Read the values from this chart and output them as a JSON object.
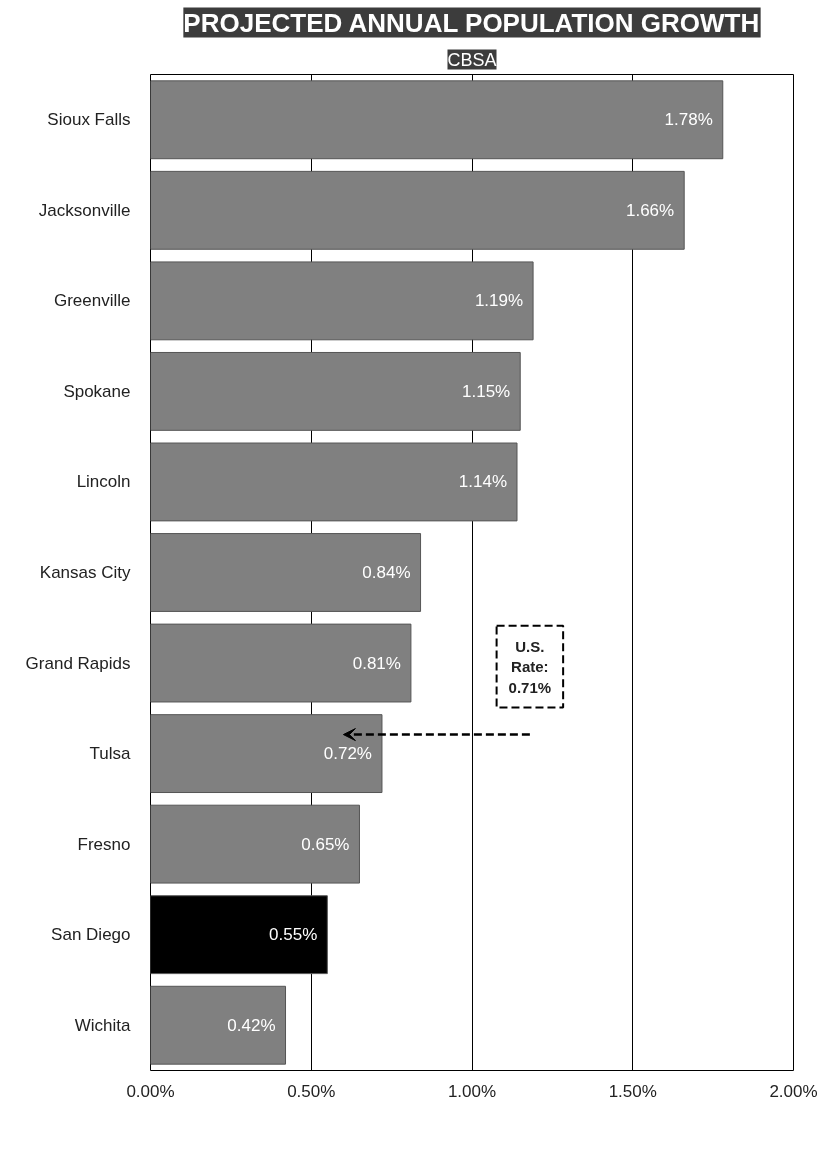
{
  "chart_data": {
    "type": "bar",
    "orientation": "horizontal",
    "title": "PROJECTED ANNUAL POPULATION GROWTH",
    "subtitle": "CBSA",
    "categories": [
      "Sioux Falls",
      "Jacksonville",
      "Greenville",
      "Spokane",
      "Lincoln",
      "Kansas City",
      "Grand Rapids",
      "Tulsa",
      "Fresno",
      "San Diego",
      "Wichita"
    ],
    "values": [
      1.78,
      1.66,
      1.19,
      1.15,
      1.14,
      0.84,
      0.81,
      0.72,
      0.65,
      0.55,
      0.42
    ],
    "colors": [
      "#808080",
      "#808080",
      "#808080",
      "#808080",
      "#808080",
      "#808080",
      "#808080",
      "#808080",
      "#808080",
      "#000000",
      "#808080"
    ],
    "value_labels": [
      "1.78%",
      "1.66%",
      "1.19%",
      "1.15%",
      "1.14%",
      "0.84%",
      "0.81%",
      "0.72%",
      "0.65%",
      "0.55%",
      "0.42%"
    ],
    "xlim": [
      0,
      2
    ],
    "xticks": [
      {
        "value": 0,
        "label": "0.00%"
      },
      {
        "value": 0.5,
        "label": "0.50%"
      },
      {
        "value": 1,
        "label": "1.00%"
      },
      {
        "value": 1.5,
        "label": "1.50%"
      },
      {
        "value": 2,
        "label": "2.00%"
      }
    ],
    "grid": "x",
    "annotations": [
      "U.S. Rate: 0.71%"
    ]
  }
}
